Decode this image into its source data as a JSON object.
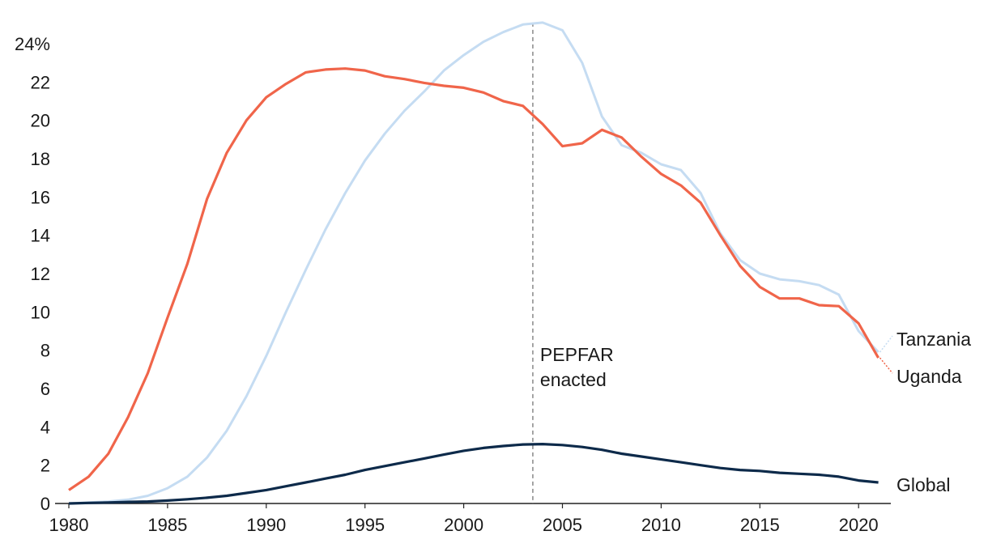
{
  "chart_data": {
    "type": "line",
    "title": "",
    "xlabel": "",
    "ylabel": "",
    "xlim": [
      1980,
      2021
    ],
    "ylim": [
      0,
      24
    ],
    "y_unit_suffix": "%",
    "yticks": [
      0,
      2,
      4,
      6,
      8,
      10,
      12,
      14,
      16,
      18,
      20,
      22,
      24
    ],
    "ytick_labels": [
      "0",
      "2",
      "4",
      "6",
      "8",
      "10",
      "12",
      "14",
      "16",
      "18",
      "20",
      "22",
      "24%"
    ],
    "xticks": [
      1980,
      1985,
      1990,
      1995,
      2000,
      2005,
      2010,
      2015,
      2020
    ],
    "xtick_labels": [
      "1980",
      "1985",
      "1990",
      "1995",
      "2000",
      "2005",
      "2010",
      "2015",
      "2020"
    ],
    "grid": false,
    "legend": "direct labels at right end of lines",
    "x": [
      1980,
      1981,
      1982,
      1983,
      1984,
      1985,
      1986,
      1987,
      1988,
      1989,
      1990,
      1991,
      1992,
      1993,
      1994,
      1995,
      1996,
      1997,
      1998,
      1999,
      2000,
      2001,
      2002,
      2003,
      2004,
      2005,
      2006,
      2007,
      2008,
      2009,
      2010,
      2011,
      2012,
      2013,
      2014,
      2015,
      2016,
      2017,
      2018,
      2019,
      2020,
      2021
    ],
    "series": [
      {
        "name": "Tanzania",
        "color": "#c5dcf2",
        "values": [
          0,
          0.05,
          0.1,
          0.2,
          0.4,
          0.8,
          1.4,
          2.4,
          3.8,
          5.6,
          7.7,
          10.0,
          12.2,
          14.3,
          16.2,
          17.9,
          19.3,
          20.5,
          21.5,
          22.6,
          23.4,
          24.1,
          24.6,
          25.0,
          25.1,
          24.7,
          23.0,
          20.2,
          18.7,
          18.3,
          17.7,
          17.4,
          16.2,
          14.1,
          12.7,
          12.0,
          11.7,
          11.6,
          11.4,
          10.9,
          9.0,
          7.9
        ]
      },
      {
        "name": "Uganda",
        "color": "#f0654a",
        "values": [
          0.7,
          1.4,
          2.6,
          4.5,
          6.8,
          9.7,
          12.5,
          15.9,
          18.3,
          20.0,
          21.2,
          21.9,
          22.5,
          22.65,
          22.7,
          22.6,
          22.3,
          22.15,
          21.95,
          21.8,
          21.7,
          21.45,
          21.0,
          20.75,
          19.8,
          18.65,
          18.8,
          19.5,
          19.1,
          18.1,
          17.2,
          16.6,
          15.7,
          14.0,
          12.4,
          11.3,
          10.7,
          10.7,
          10.35,
          10.3,
          9.4,
          7.6
        ]
      },
      {
        "name": "Global",
        "color": "#0d2a4a",
        "values": [
          0,
          0.03,
          0.05,
          0.08,
          0.1,
          0.15,
          0.22,
          0.3,
          0.4,
          0.55,
          0.7,
          0.9,
          1.1,
          1.3,
          1.5,
          1.75,
          1.95,
          2.15,
          2.35,
          2.55,
          2.75,
          2.9,
          3.0,
          3.08,
          3.1,
          3.05,
          2.95,
          2.8,
          2.6,
          2.45,
          2.3,
          2.15,
          2.0,
          1.85,
          1.75,
          1.7,
          1.6,
          1.55,
          1.5,
          1.4,
          1.2,
          1.1
        ]
      }
    ],
    "annotations": [
      {
        "x": 2003.5,
        "text_lines": [
          "PEPFAR",
          "enacted"
        ],
        "style": "dashed vertical line"
      }
    ]
  }
}
